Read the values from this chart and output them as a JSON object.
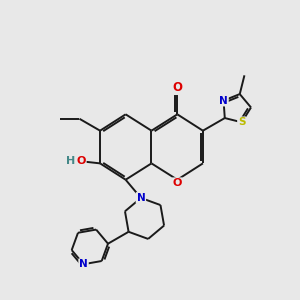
{
  "background_color": "#e8e8e8",
  "bond_color": "#1a1a1a",
  "atom_colors": {
    "O": "#dd0000",
    "N": "#0000cc",
    "S": "#bbbb00",
    "H_color": "#448888",
    "C": "#1a1a1a"
  },
  "figsize": [
    3.0,
    3.0
  ],
  "dpi": 100
}
